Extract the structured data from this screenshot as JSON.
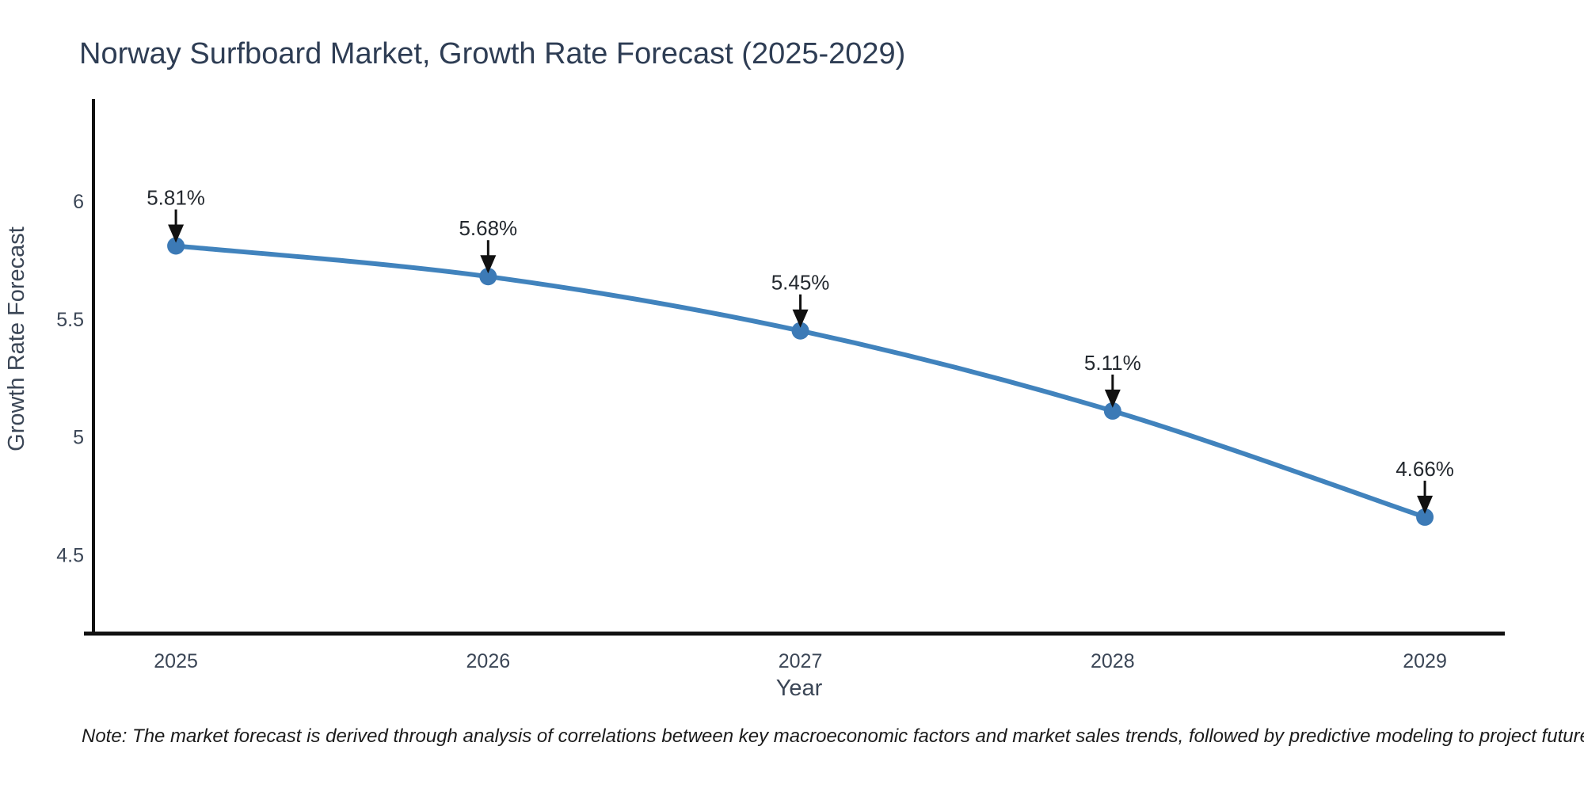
{
  "title": "Norway Surfboard Market, Growth Rate Forecast (2025-2029)",
  "chart_data": {
    "type": "line",
    "title": "Norway Surfboard Market, Growth Rate Forecast (2025-2029)",
    "x": [
      2025,
      2026,
      2027,
      2028,
      2029
    ],
    "series": [
      {
        "name": "Growth Rate Forecast",
        "values": [
          5.81,
          5.68,
          5.45,
          5.11,
          4.66
        ]
      }
    ],
    "point_labels": [
      "5.81%",
      "5.68%",
      "5.45%",
      "5.11%",
      "4.66%"
    ],
    "xlabel": "Year",
    "ylabel": "Growth Rate Forecast",
    "yticks": [
      4.5,
      5,
      5.5,
      6
    ],
    "ylim": [
      4.166,
      6.433
    ],
    "xlim": [
      2024.736,
      2029.256
    ],
    "grid": false,
    "legend": "none",
    "line_shape": "spline",
    "line_color": "#4183bd",
    "marker_color": "#3c7ab6",
    "axis_color": "#111111",
    "annotation_arrow_color": "#111111"
  },
  "note": "Note: The market forecast is derived through analysis of correlations between key macroeconomic factors and market sales trends, followed by predictive modeling to project future sales"
}
